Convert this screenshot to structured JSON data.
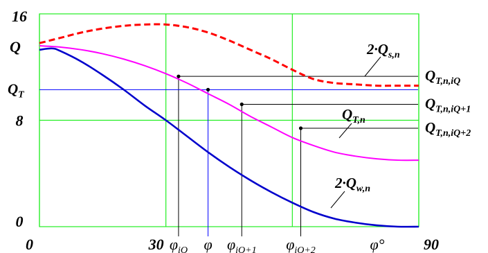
{
  "chart_data": {
    "type": "line",
    "xlim": [
      0,
      90
    ],
    "ylim": [
      0,
      16
    ],
    "grid": true,
    "x_ticks": [
      {
        "value": 0,
        "label": "0"
      },
      {
        "value": 30,
        "label": "30"
      },
      {
        "value": 90,
        "label": "90"
      }
    ],
    "y_ticks": [
      {
        "value": 0,
        "label": "0"
      },
      {
        "value": 8,
        "label": "8"
      },
      {
        "value": 16,
        "label": "16"
      }
    ],
    "ylabel": "Q",
    "xlabel": "φ°",
    "series": [
      {
        "name": "2·Qs,n",
        "color": "#ff0000",
        "style": "dashed",
        "x": [
          0,
          5,
          10,
          15,
          20,
          25,
          30,
          35,
          40,
          45,
          50,
          55,
          60,
          65,
          70,
          75,
          80,
          85,
          90
        ],
        "y": [
          13.8,
          14.2,
          14.6,
          14.9,
          15.1,
          15.2,
          15.2,
          15.0,
          14.6,
          14.0,
          13.3,
          12.6,
          11.8,
          11.1,
          10.8,
          10.7,
          10.6,
          10.6,
          10.6
        ]
      },
      {
        "name": "QT,n",
        "color": "#ff00ff",
        "style": "solid",
        "x": [
          0,
          5,
          10,
          15,
          20,
          25,
          30,
          35,
          40,
          45,
          50,
          55,
          60,
          65,
          70,
          75,
          80,
          85,
          90
        ],
        "y": [
          13.6,
          13.5,
          13.3,
          13.0,
          12.6,
          12.1,
          11.5,
          10.8,
          10.0,
          9.2,
          8.3,
          7.5,
          6.7,
          6.1,
          5.6,
          5.3,
          5.1,
          5.0,
          5.0
        ]
      },
      {
        "name": "2·Qw,n",
        "color": "#0000cc",
        "style": "solid",
        "x": [
          0,
          3,
          5,
          10,
          15,
          20,
          25,
          30,
          35,
          40,
          45,
          50,
          55,
          60,
          65,
          70,
          75,
          80,
          85,
          90
        ],
        "y": [
          13.3,
          13.4,
          13.2,
          12.4,
          11.4,
          10.3,
          9.1,
          8.0,
          6.8,
          5.6,
          4.5,
          3.5,
          2.6,
          1.8,
          1.1,
          0.6,
          0.3,
          0.1,
          0.0,
          0.0
        ]
      }
    ],
    "vertical_lines": [
      {
        "label": "φiQ",
        "x": 33,
        "y": 11.3,
        "color": "#000000"
      },
      {
        "label": "φ",
        "x": 40,
        "y": 10.3,
        "color": "#0000ff"
      },
      {
        "label": "φiQ+1",
        "x": 48,
        "y": 9.2,
        "color": "#000000"
      },
      {
        "label": "φiQ+2",
        "x": 62,
        "y": 7.4,
        "color": "#000000"
      }
    ],
    "right_labels": [
      {
        "text": "QT,n,iQ"
      },
      {
        "text": "QT,n,iQ+1"
      },
      {
        "text": "QT,n,iQ+2"
      }
    ],
    "qt_label": "QT",
    "curve_labels": [
      {
        "text": "2·Qs,n"
      },
      {
        "text": "QT,n"
      },
      {
        "text": "2·Qw,n"
      }
    ]
  }
}
